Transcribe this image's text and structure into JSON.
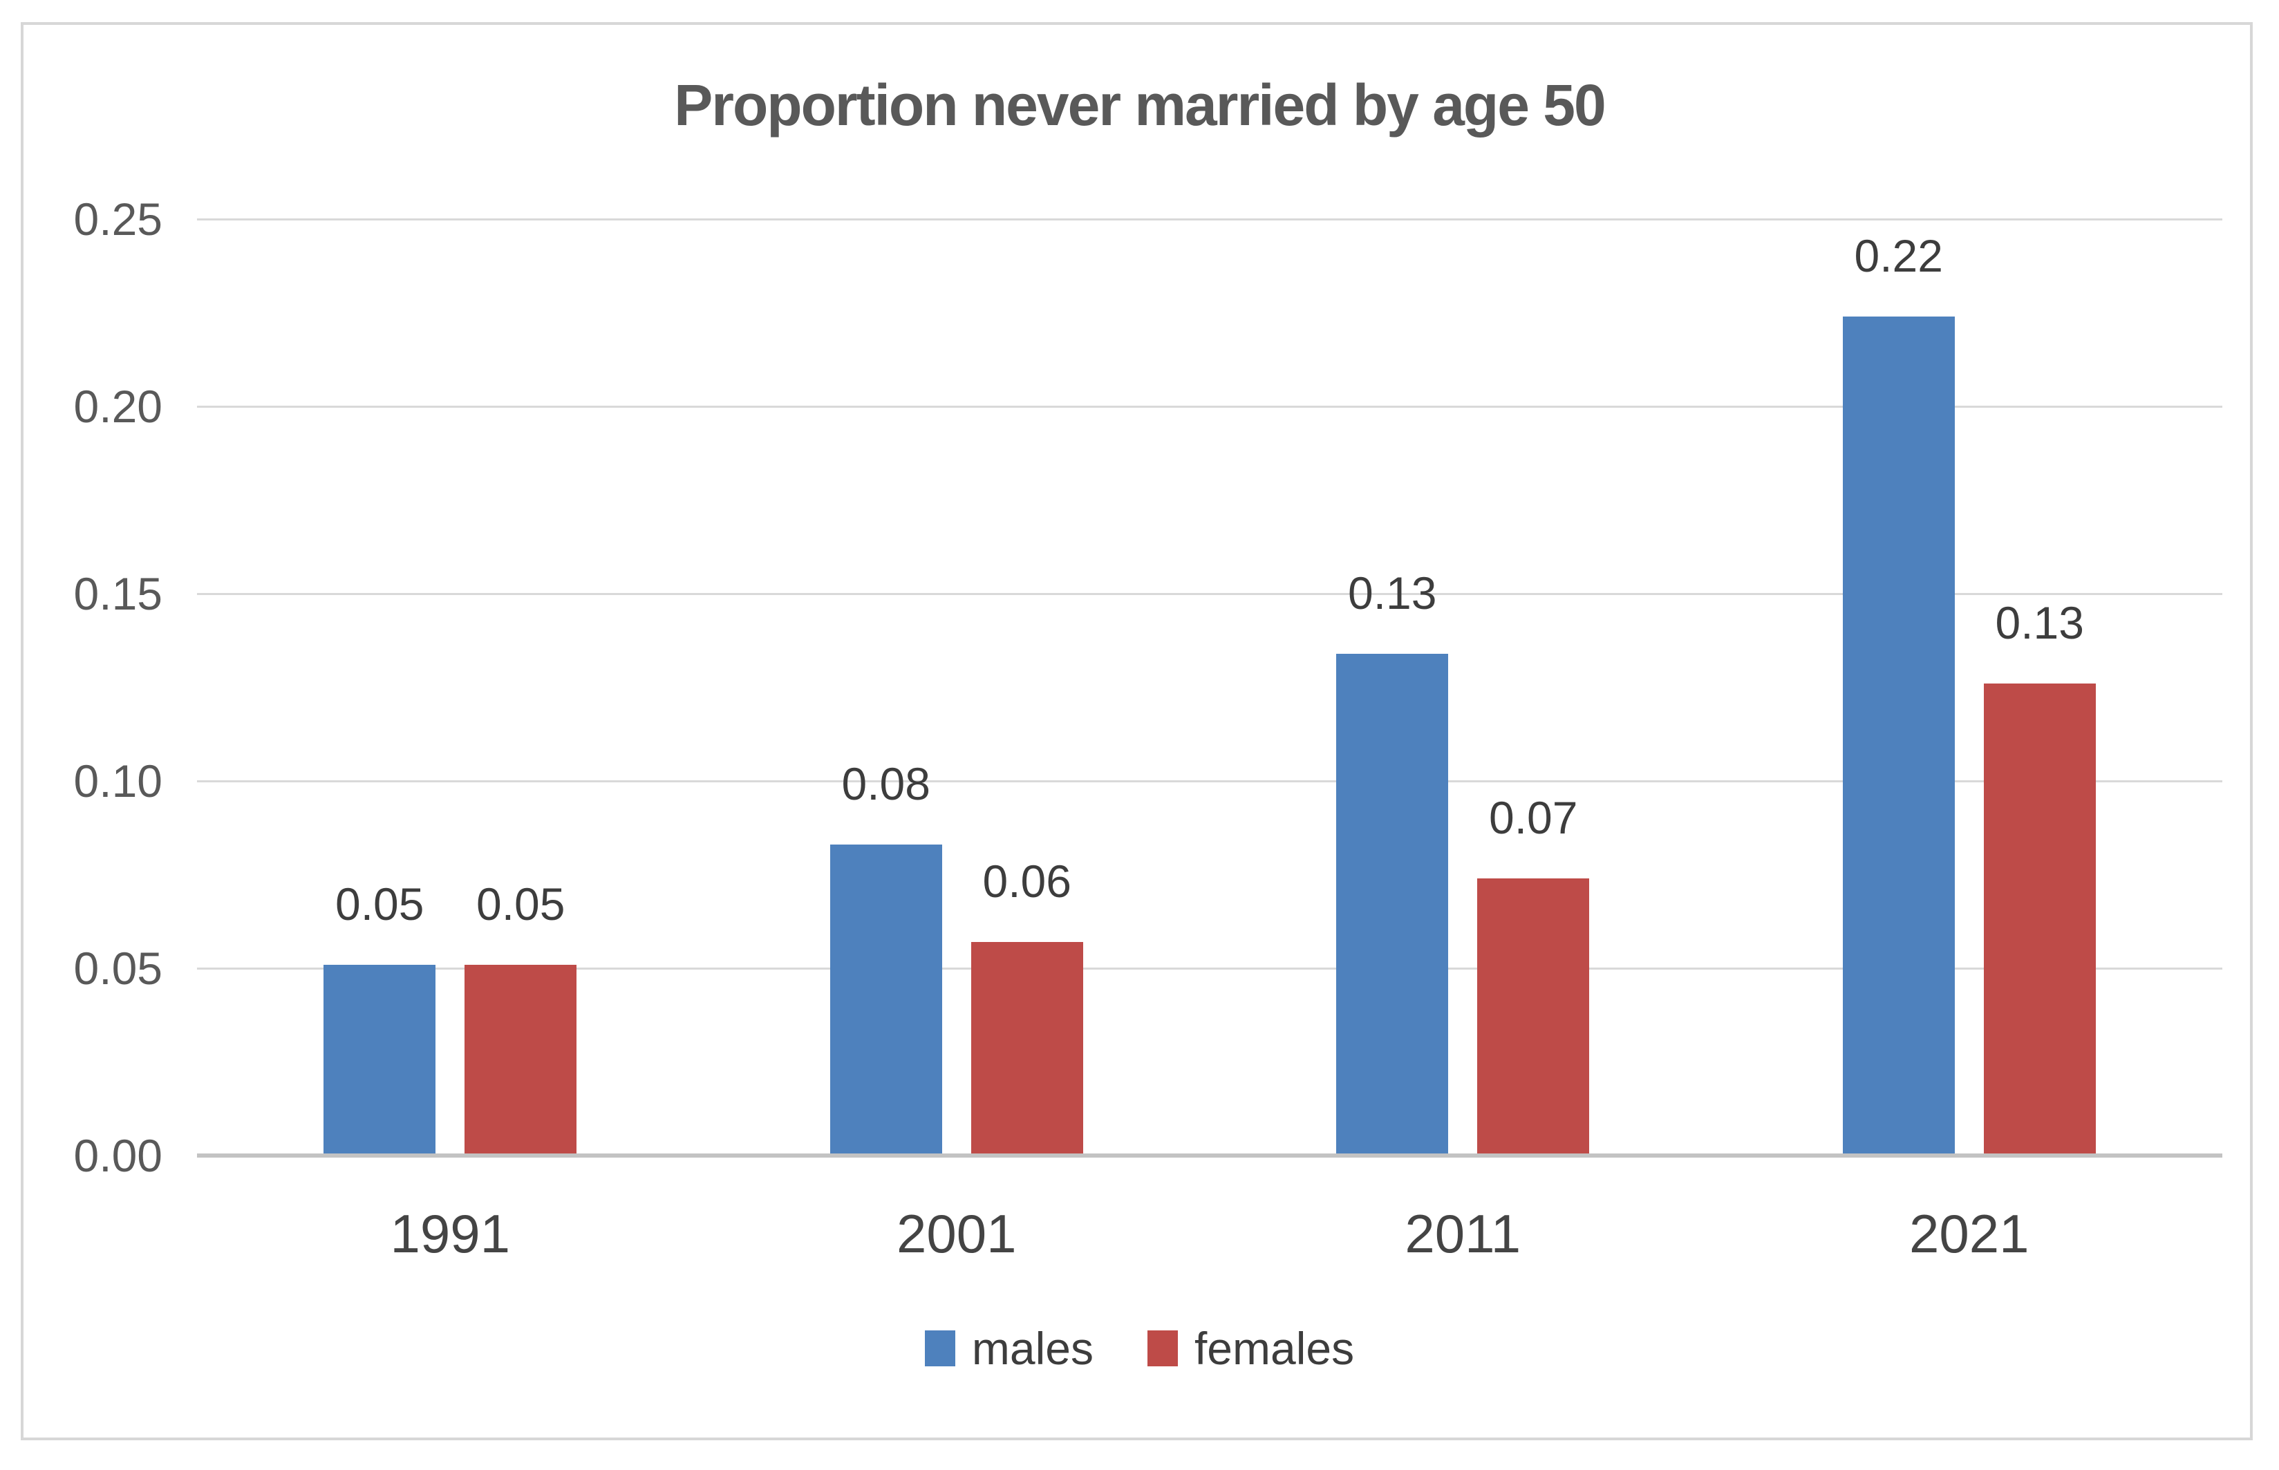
{
  "page": {
    "background_color": "#ffffff",
    "frame_border_color": "#d7d7d7"
  },
  "chart_data": {
    "type": "bar",
    "title": "Proportion never married by age 50",
    "categories": [
      "1991",
      "2001",
      "2011",
      "2021"
    ],
    "series": [
      {
        "name": "males",
        "color": "#4E81BD",
        "values": [
          0.051,
          0.083,
          0.134,
          0.224
        ],
        "bar_labels": [
          "0.05",
          "0.08",
          "0.13",
          "0.22"
        ]
      },
      {
        "name": "females",
        "color": "#BE4B48",
        "values": [
          0.051,
          0.057,
          0.074,
          0.126
        ],
        "bar_labels": [
          "0.05",
          "0.06",
          "0.07",
          "0.13"
        ]
      }
    ],
    "xlabel": "",
    "ylabel": "",
    "ylim": [
      0,
      0.25
    ],
    "y_tick_step": 0.05,
    "y_tick_labels": [
      "0.25",
      "0.20",
      "0.15",
      "0.10",
      "0.05",
      "0.00"
    ],
    "grid": true,
    "gridline_color": "#d9d9d9",
    "axis_line_color": "#c3c3c3",
    "legend_position": "bottom",
    "legend_entries": [
      "males",
      "females"
    ],
    "title_color": "#595959",
    "tick_label_color": "#595959",
    "data_label_color": "#3d3d3d"
  }
}
